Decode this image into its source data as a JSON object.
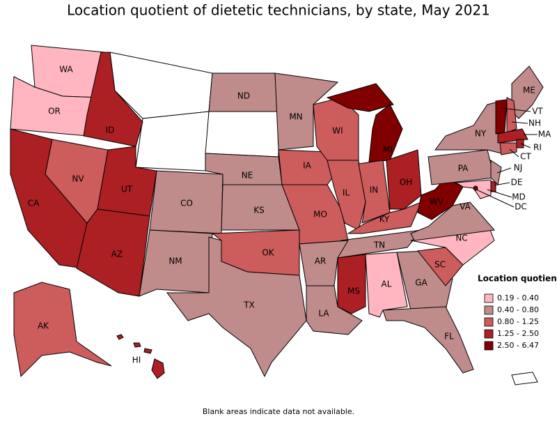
{
  "title": "Location quotient of dietetic technicians, by state, May 2021",
  "note": "Blank areas indicate data not available.",
  "legend": {
    "title": "Location quotient",
    "items": [
      {
        "label": "0.19 - 0.40",
        "color": "#ffb6c1"
      },
      {
        "label": "0.40 - 0.80",
        "color": "#bf8b8b"
      },
      {
        "label": "0.80 - 1.25",
        "color": "#cd5c5c"
      },
      {
        "label": "1.25 - 2.50",
        "color": "#ac1f23"
      },
      {
        "label": "2.50 - 6.47",
        "color": "#800000"
      }
    ]
  },
  "states": [
    {
      "label": "WA",
      "class": 0
    },
    {
      "label": "OR",
      "class": 0
    },
    {
      "label": "CA",
      "class": 3
    },
    {
      "label": "NV",
      "class": 2
    },
    {
      "label": "ID",
      "class": 3
    },
    {
      "label": "UT",
      "class": 3
    },
    {
      "label": "AZ",
      "class": 3
    },
    {
      "label": "CO",
      "class": 1
    },
    {
      "label": "NM",
      "class": 1
    },
    {
      "label": "ND",
      "class": 1
    },
    {
      "label": "NE",
      "class": 1
    },
    {
      "label": "KS",
      "class": 1
    },
    {
      "label": "OK",
      "class": 2
    },
    {
      "label": "TX",
      "class": 1
    },
    {
      "label": "MN",
      "class": 1
    },
    {
      "label": "IA",
      "class": 2
    },
    {
      "label": "MO",
      "class": 2
    },
    {
      "label": "WI",
      "class": 2
    },
    {
      "label": "IL",
      "class": 2
    },
    {
      "label": "MI",
      "class": 4
    },
    {
      "label": "IN",
      "class": 2
    },
    {
      "label": "OH",
      "class": 3
    },
    {
      "label": "KY",
      "class": 2
    },
    {
      "label": "TN",
      "class": 1
    },
    {
      "label": "AR",
      "class": 1
    },
    {
      "label": "LA",
      "class": 1
    },
    {
      "label": "MS",
      "class": 3
    },
    {
      "label": "AL",
      "class": 0
    },
    {
      "label": "GA",
      "class": 1
    },
    {
      "label": "FL",
      "class": 1
    },
    {
      "label": "SC",
      "class": 2
    },
    {
      "label": "NC",
      "class": 0
    },
    {
      "label": "VA",
      "class": 1
    },
    {
      "label": "WV",
      "class": 4
    },
    {
      "label": "PA",
      "class": 1
    },
    {
      "label": "NY",
      "class": 1
    },
    {
      "label": "NJ",
      "class": 1
    },
    {
      "label": "DE",
      "class": 3
    },
    {
      "label": "MD",
      "class": 0
    },
    {
      "label": "DC",
      "class": 4
    },
    {
      "label": "ME",
      "class": 1
    },
    {
      "label": "VT",
      "class": 4
    },
    {
      "label": "NH",
      "class": 2
    },
    {
      "label": "MA",
      "class": 3
    },
    {
      "label": "RI",
      "class": 3
    },
    {
      "label": "CT",
      "class": 2
    },
    {
      "label": "AK",
      "class": 2
    },
    {
      "label": "HI",
      "class": 3
    }
  ]
}
